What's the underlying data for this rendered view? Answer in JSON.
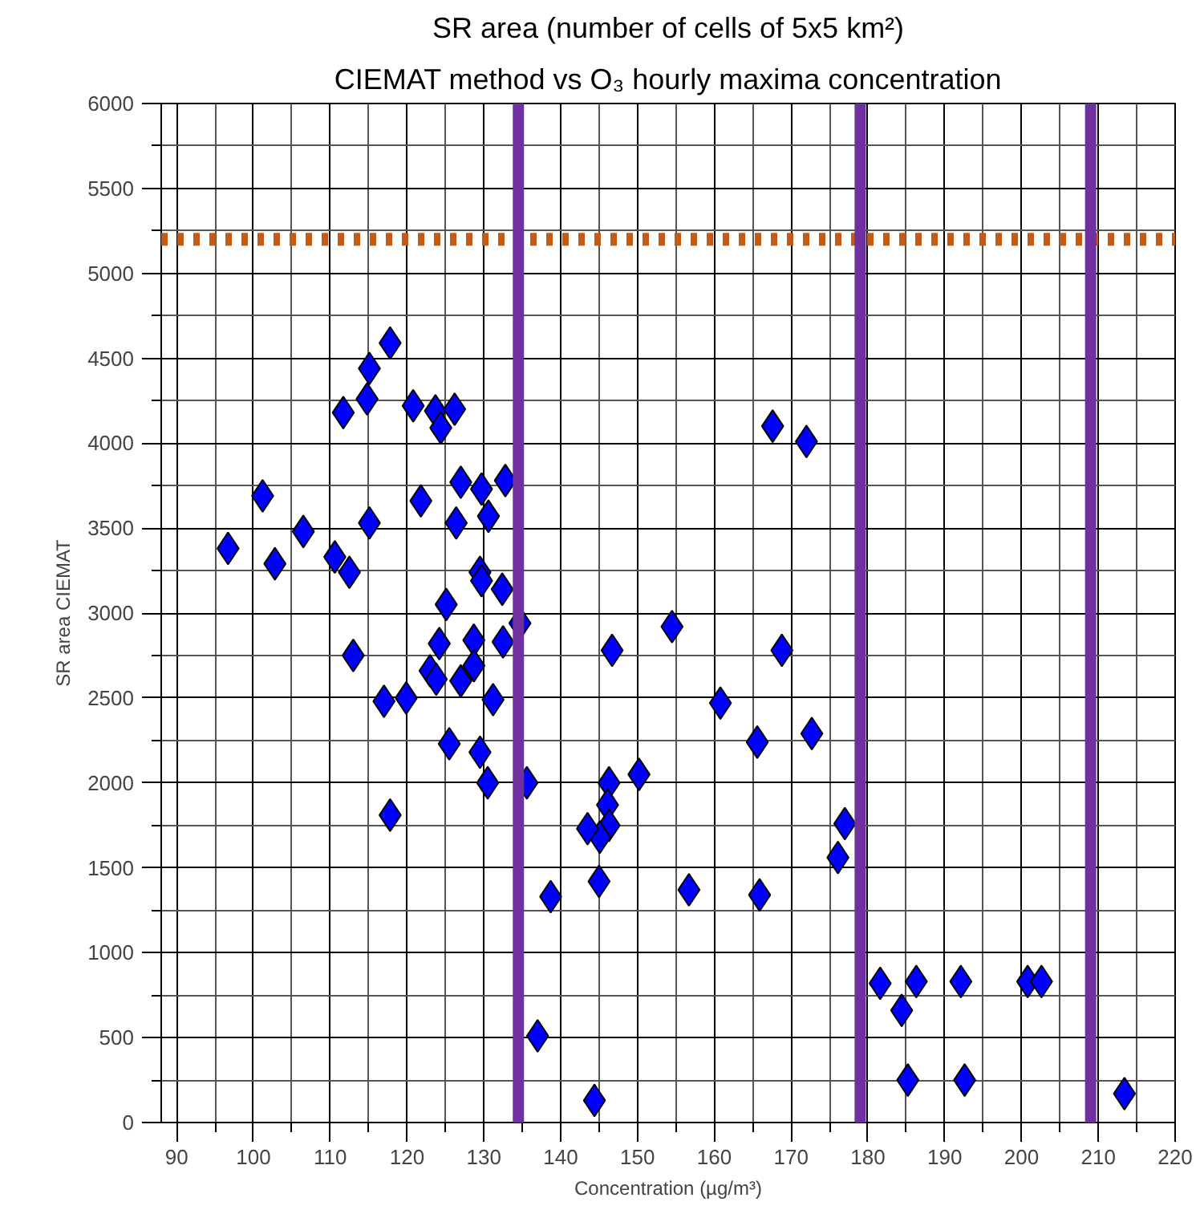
{
  "chart_data": {
    "type": "scatter",
    "title": "SR area (number of cells of 5x5 km²)",
    "subtitle": "CIEMAT method vs O₃ hourly maxima concentration",
    "xlabel": "Concentration (µg/m³)",
    "ylabel": "SR area CIEMAT",
    "xlim": [
      88,
      220
    ],
    "ylim": [
      0,
      6000
    ],
    "xticks": [
      90,
      100,
      110,
      120,
      130,
      140,
      150,
      160,
      170,
      180,
      190,
      200,
      210,
      220
    ],
    "yticks": [
      0,
      500,
      1000,
      1500,
      2000,
      2500,
      3000,
      3500,
      4000,
      4500,
      5000,
      5500,
      6000
    ],
    "grid": true,
    "marker": "diamond",
    "series": [
      {
        "color": "#0000ff",
        "x": [
          117.8,
          115.1,
          114.8,
          111.7,
          120.8,
          123.7,
          124.4,
          126.2,
          127.0,
          129.7,
          132.8,
          130.6,
          126.4,
          121.8,
          115.1,
          106.5,
          101.2,
          96.7,
          102.8,
          110.6,
          112.5,
          129.5,
          129.7,
          132.4,
          125.1,
          134.7,
          113.0,
          124.2,
          128.7,
          132.5,
          128.7,
          123.0,
          123.8,
          127.0,
          117.0,
          119.9,
          131.2,
          125.5,
          129.5,
          130.5,
          135.6,
          117.8,
          138.7,
          137.0,
          144.4,
          154.5,
          146.7,
          168.8,
          160.8,
          165.6,
          172.7,
          150.2,
          146.3,
          146.1,
          146.3,
          145.1,
          143.5,
          145.0,
          156.7,
          165.9,
          177.0,
          176.1,
          181.6,
          186.3,
          184.4,
          192.1,
          200.8,
          202.6,
          185.2,
          192.6,
          213.4,
          167.6,
          172.0
        ],
        "values": [
          4590,
          4440,
          4260,
          4180,
          4220,
          4190,
          4090,
          4200,
          3770,
          3730,
          3780,
          3570,
          3530,
          3660,
          3530,
          3480,
          3690,
          3380,
          3290,
          3330,
          3240,
          3240,
          3190,
          3140,
          3050,
          2940,
          2750,
          2820,
          2840,
          2830,
          2690,
          2660,
          2610,
          2600,
          2480,
          2500,
          2490,
          2230,
          2180,
          2000,
          2000,
          1810,
          1330,
          510,
          130,
          2920,
          2780,
          2780,
          2470,
          2240,
          2290,
          2050,
          2000,
          1870,
          1750,
          1680,
          1730,
          1420,
          1370,
          1340,
          1760,
          1560,
          820,
          830,
          660,
          830,
          830,
          830,
          250,
          250,
          170,
          4100,
          4010
        ]
      }
    ],
    "ref_lines": [
      {
        "axis": "y",
        "value": 5200,
        "color": "#c55a11",
        "line_style": "dotted"
      },
      {
        "axis": "x",
        "value": 134.5,
        "color": "#7030a0",
        "line_style": "solid"
      },
      {
        "axis": "x",
        "value": 179,
        "color": "#7030a0",
        "line_style": "solid"
      },
      {
        "axis": "x",
        "value": 209,
        "color": "#7030a0",
        "line_style": "solid"
      }
    ]
  }
}
